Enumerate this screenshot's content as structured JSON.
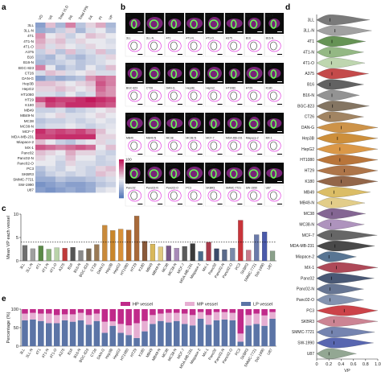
{
  "figure": {
    "panel_labels": {
      "a": "a",
      "b": "b",
      "c": "c",
      "d": "d",
      "e": "e"
    }
  },
  "cell_lines": [
    "3LL",
    "3LL-N",
    "4T1",
    "4T1-N",
    "4T1-O",
    "A375",
    "B16",
    "B16-N",
    "BGC-823",
    "CT26",
    "DAN-G",
    "Hep3B",
    "HepG2",
    "HT1080",
    "HT29",
    "K180",
    "MB49",
    "MB49-N",
    "MC38",
    "MC38-N",
    "MCF-7",
    "MDA-MB-231",
    "Miapace-2",
    "MX-1",
    "Panc02",
    "Panc02-N",
    "Panc02-O",
    "PC3",
    "SKBR3",
    "SMMC-7721",
    "SW-1990",
    "U87"
  ],
  "heatmap": {
    "columns": [
      "VD",
      "VA",
      "Total VLD",
      "PA",
      "Total FPA",
      "FA",
      "PI",
      "VP"
    ],
    "colorbar_ticks": [
      "100",
      "80",
      "60",
      "40",
      "20",
      "0"
    ],
    "colors": {
      "low": "#4a6fb5",
      "mid": "#e8e8ee",
      "high": "#c2185b"
    },
    "values": [
      [
        20,
        60,
        30,
        75,
        35,
        55,
        65,
        30
      ],
      [
        25,
        30,
        40,
        55,
        30,
        45,
        50,
        35
      ],
      [
        70,
        50,
        55,
        40,
        50,
        60,
        55,
        50
      ],
      [
        65,
        55,
        60,
        45,
        55,
        50,
        50,
        45
      ],
      [
        60,
        45,
        55,
        50,
        45,
        55,
        50,
        48
      ],
      [
        40,
        55,
        35,
        60,
        40,
        45,
        60,
        40
      ],
      [
        35,
        30,
        45,
        35,
        30,
        40,
        45,
        55
      ],
      [
        30,
        35,
        40,
        45,
        35,
        40,
        45,
        50
      ],
      [
        75,
        50,
        30,
        40,
        35,
        50,
        40,
        60
      ],
      [
        45,
        60,
        55,
        45,
        50,
        55,
        45,
        45
      ],
      [
        20,
        30,
        25,
        30,
        35,
        70,
        80,
        75
      ],
      [
        60,
        60,
        55,
        50,
        55,
        60,
        85,
        75
      ],
      [
        55,
        55,
        60,
        55,
        50,
        55,
        80,
        70
      ],
      [
        45,
        45,
        40,
        50,
        40,
        45,
        75,
        70
      ],
      [
        85,
        95,
        90,
        90,
        95,
        100,
        95,
        90
      ],
      [
        65,
        90,
        85,
        95,
        95,
        95,
        90,
        85
      ],
      [
        40,
        40,
        45,
        35,
        40,
        45,
        50,
        55
      ],
      [
        45,
        50,
        55,
        45,
        45,
        50,
        55,
        50
      ],
      [
        35,
        40,
        40,
        45,
        40,
        45,
        50,
        45
      ],
      [
        40,
        45,
        45,
        50,
        45,
        40,
        45,
        48
      ],
      [
        95,
        85,
        90,
        85,
        90,
        80,
        60,
        50
      ],
      [
        90,
        90,
        95,
        95,
        95,
        95,
        55,
        55
      ],
      [
        60,
        50,
        40,
        35,
        45,
        50,
        55,
        45
      ],
      [
        85,
        80,
        75,
        80,
        85,
        80,
        50,
        60
      ],
      [
        60,
        55,
        50,
        65,
        55,
        55,
        45,
        40
      ],
      [
        55,
        50,
        45,
        60,
        50,
        50,
        40,
        45
      ],
      [
        50,
        50,
        40,
        55,
        45,
        45,
        40,
        42
      ],
      [
        35,
        45,
        40,
        50,
        45,
        40,
        55,
        60
      ],
      [
        30,
        40,
        45,
        40,
        45,
        40,
        60,
        55
      ],
      [
        25,
        25,
        35,
        30,
        30,
        35,
        40,
        45
      ],
      [
        15,
        20,
        25,
        20,
        20,
        25,
        35,
        40
      ],
      [
        20,
        15,
        20,
        25,
        20,
        25,
        45,
        50
      ]
    ]
  },
  "images": {
    "rows": [
      [
        "3LL",
        "3LL-N",
        "4T1",
        "4T1-N",
        "4T1-O",
        "A375",
        "B16",
        "B16-N"
      ],
      [
        "BGC-823",
        "CT26",
        "DAN-G",
        "Hep3B",
        "HepG2",
        "HT1080",
        "HT29",
        "K180"
      ],
      [
        "MB49",
        "MB49-N",
        "MC38",
        "MC38-N",
        "MCF-7",
        "MDA-MB-231",
        "Miapace-2",
        "MX-1"
      ],
      [
        "Panc02",
        "Panc02-N",
        "Panc02-O",
        "PC3",
        "SKBR3",
        "SMMC-7721",
        "SW-1990",
        "U87"
      ]
    ],
    "colors": {
      "background": "#0b0b0b",
      "vessel": "#66ff55",
      "stain": "#d63ad6",
      "outline": "#e040e0"
    }
  },
  "chart_data": [
    {
      "type": "bar",
      "panel": "c",
      "ylabel": "Mean VP each vessel",
      "ylim": [
        0,
        10
      ],
      "yticks": [
        0,
        5,
        10
      ],
      "categories": [
        "3LL",
        "3LL-N",
        "4T1",
        "4T1-N",
        "4T1-O",
        "A375",
        "B16",
        "B16-N",
        "BGC-823",
        "CT26",
        "DAN-G",
        "Hep3B",
        "HepG2",
        "HT1080",
        "HT29",
        "K180",
        "MB49",
        "MB49-N",
        "MC38",
        "MC38-N",
        "MCF-7",
        "MDA-MB-231",
        "Miapace-2",
        "MX-1",
        "Panc02",
        "Panc02-N",
        "Panc02-O",
        "PC3",
        "SKBR3",
        "SMMC-7721",
        "SW-1990",
        "U87"
      ],
      "values": [
        3.3,
        2.6,
        3.2,
        2.5,
        2.8,
        2.7,
        2.9,
        2.2,
        2.6,
        3.5,
        7.6,
        6.5,
        6.8,
        6.6,
        9.6,
        4.2,
        3.6,
        3.0,
        3.2,
        2.7,
        3.1,
        3.7,
        2.0,
        4.0,
        2.6,
        2.4,
        2.7,
        8.7,
        2.3,
        5.6,
        6.2,
        2.1
      ],
      "reference_line": 4,
      "bar_colors": [
        "#6f6f6f",
        "#a0a0a0",
        "#5a8a47",
        "#8bb37a",
        "#b9d3a9",
        "#bf3b3b",
        "#555555",
        "#8a8a8a",
        "#7a6a55",
        "#9a7a55",
        "#c98a3a",
        "#c9862b",
        "#d99038",
        "#b46a2a",
        "#a86a3a",
        "#8a5a3a",
        "#d9b85a",
        "#e0c980",
        "#7a5a8a",
        "#a88ab8",
        "#5a5a5a",
        "#3a3a3a",
        "#4a6a8a",
        "#a83a4a",
        "#3a4a6a",
        "#5a6a8a",
        "#7a8aaa",
        "#c8343a",
        "#c87a8a",
        "#6a7aaa",
        "#4a5aaa",
        "#8aa08a"
      ]
    },
    {
      "type": "bar",
      "panel": "e",
      "ylabel": "Percentage (%)",
      "ylim": [
        0,
        100
      ],
      "yticks": [
        0,
        50,
        100
      ],
      "legend_placement": "top",
      "categories": [
        "3LL",
        "3LL-N",
        "4T1",
        "4T1-N",
        "4T1-O",
        "A375",
        "B16",
        "B16-N",
        "BGC-823",
        "CT26",
        "DAN-G",
        "Hep3B",
        "HepG2",
        "HT1080",
        "HT29",
        "K180",
        "MB49",
        "MB49-N",
        "MC38",
        "MC38-N",
        "MCF-7",
        "MDA-MB-231",
        "Miapace-2",
        "MX-1",
        "Panc02",
        "Panc02-N",
        "Panc02-O",
        "PC3",
        "SKBR3",
        "SMMC-7721",
        "SW-1990",
        "U87"
      ],
      "series": [
        {
          "name": "LP vessel",
          "color": "#5b74a6",
          "values": [
            70,
            72,
            68,
            62,
            62,
            70,
            66,
            70,
            58,
            68,
            36,
            55,
            36,
            30,
            22,
            40,
            60,
            68,
            64,
            68,
            60,
            56,
            74,
            58,
            70,
            72,
            70,
            12,
            56,
            60,
            55,
            74
          ]
        },
        {
          "name": "MP vessel",
          "color": "#e6aed2",
          "values": [
            18,
            18,
            20,
            26,
            22,
            16,
            20,
            20,
            26,
            20,
            30,
            12,
            24,
            26,
            40,
            28,
            24,
            20,
            26,
            22,
            28,
            28,
            18,
            26,
            22,
            20,
            20,
            22,
            28,
            28,
            28,
            18
          ]
        },
        {
          "name": "HP vessel",
          "color": "#c02a8a",
          "values": [
            12,
            10,
            12,
            12,
            16,
            14,
            14,
            10,
            16,
            12,
            34,
            33,
            40,
            44,
            38,
            32,
            16,
            12,
            10,
            10,
            12,
            16,
            8,
            16,
            8,
            8,
            10,
            66,
            16,
            12,
            17,
            8
          ]
        }
      ]
    },
    {
      "type": "violin",
      "panel": "d",
      "xlabel": "VP",
      "xlim": [
        0,
        1
      ],
      "xticks": [
        "0",
        "0.2",
        "0.4",
        "0.6",
        "0.8",
        "1.0"
      ],
      "categories": [
        "3LL",
        "3LL-N",
        "4T1",
        "4T1-N",
        "4T1-O",
        "A375",
        "B16",
        "B16-N",
        "BGC-823",
        "CT26",
        "DAN-G",
        "Hep3B",
        "HepG2",
        "HT1080",
        "HT29",
        "K180",
        "MB49",
        "MB49-N",
        "MC38",
        "MC38-N",
        "MCF-7",
        "MDA-MB-231",
        "Miapace-2",
        "MX-1",
        "Panc02",
        "Panc02-N",
        "Panc02-O",
        "PC3",
        "SKBR3",
        "SMMC-7721",
        "SW-1990",
        "U87"
      ],
      "medians": [
        0.22,
        0.3,
        0.25,
        0.22,
        0.24,
        0.25,
        0.22,
        0.25,
        0.26,
        0.22,
        0.4,
        0.34,
        0.38,
        0.38,
        0.45,
        0.4,
        0.28,
        0.24,
        0.25,
        0.23,
        0.24,
        0.3,
        0.2,
        0.32,
        0.24,
        0.22,
        0.22,
        0.45,
        0.28,
        0.25,
        0.28,
        0.2
      ],
      "spreads": [
        0.65,
        0.6,
        0.55,
        0.55,
        0.55,
        0.6,
        0.55,
        0.45,
        0.6,
        0.55,
        0.75,
        0.75,
        0.75,
        0.75,
        0.8,
        0.8,
        0.6,
        0.55,
        0.55,
        0.55,
        0.75,
        0.65,
        0.45,
        0.75,
        0.7,
        0.55,
        0.55,
        0.95,
        0.75,
        0.7,
        0.65,
        0.45
      ],
      "colors": [
        "#6f6f6f",
        "#9a9a9a",
        "#5a8a47",
        "#8bb37a",
        "#b9d3a9",
        "#bf3b3b",
        "#555555",
        "#8a8a8a",
        "#7a6a55",
        "#9a7a55",
        "#c98a3a",
        "#c9862b",
        "#d99038",
        "#b46a2a",
        "#a86a3a",
        "#8a5a3a",
        "#d9b85a",
        "#e0c980",
        "#7a5a8a",
        "#a88ab8",
        "#5a5a5a",
        "#3a3a3a",
        "#4a6a8a",
        "#a83a4a",
        "#3a4a6a",
        "#5a6a8a",
        "#7a8aaa",
        "#c8343a",
        "#c87a8a",
        "#6a7aaa",
        "#4a5aaa",
        "#8aa08a"
      ]
    }
  ]
}
